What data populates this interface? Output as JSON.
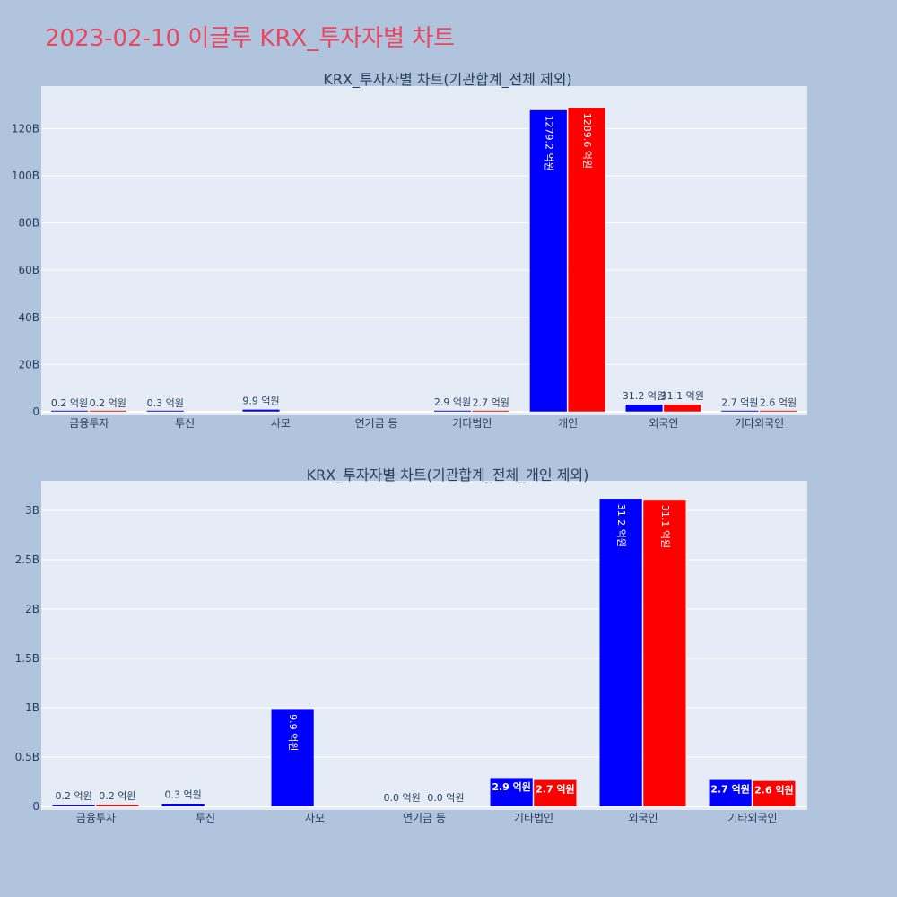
{
  "title": "2023-02-10 이글루 KRX_투자자별 차트",
  "colors": {
    "background": "#b0c4de",
    "plot_bg": "#e5ecf6",
    "title": "#e8475f",
    "buy": "#0000ff",
    "sell": "#ff0000"
  },
  "chart_data": [
    {
      "type": "bar",
      "title": "KRX_투자자별 차트(기관합계_전체 제외)",
      "categories": [
        "금융투자",
        "투신",
        "사모",
        "연기금 등",
        "기타법인",
        "개인",
        "외국인",
        "기타외국인"
      ],
      "ylim": [
        0,
        138000000000
      ],
      "yticks": [
        0,
        20000000000,
        40000000000,
        60000000000,
        80000000000,
        100000000000,
        120000000000
      ],
      "ytick_labels": [
        "0",
        "20B",
        "40B",
        "60B",
        "80B",
        "100B",
        "120B"
      ],
      "grid": true,
      "series": [
        {
          "color": "#0000ff",
          "values": [
            20000000,
            30000000,
            990000000,
            0,
            290000000,
            127920000000,
            3120000000,
            270000000
          ],
          "labels": [
            "0.2 억원",
            "0.3 억원",
            "9.9 억원",
            "",
            "2.9 억원",
            "1279.2 억원",
            "31.2 억원",
            "2.7 억원"
          ]
        },
        {
          "color": "#ff0000",
          "values": [
            20000000,
            0,
            0,
            0,
            270000000,
            128960000000,
            3110000000,
            260000000
          ],
          "labels": [
            "0.2 억원",
            "",
            "",
            "",
            "2.7 억원",
            "1289.6 억원",
            "31.1 억원",
            "2.6 억원"
          ]
        }
      ]
    },
    {
      "type": "bar",
      "title": "KRX_투자자별 차트(기관합계_전체_개인 제외)",
      "categories": [
        "금융투자",
        "투신",
        "사모",
        "연기금 등",
        "기타법인",
        "외국인",
        "기타외국인"
      ],
      "ylim": [
        0,
        3300000000
      ],
      "yticks": [
        0,
        500000000,
        1000000000,
        1500000000,
        2000000000,
        2500000000,
        3000000000
      ],
      "ytick_labels": [
        "0",
        "0.5B",
        "1B",
        "1.5B",
        "2B",
        "2.5B",
        "3B"
      ],
      "grid": true,
      "series": [
        {
          "color": "#0000ff",
          "values": [
            20000000,
            30000000,
            990000000,
            0,
            290000000,
            3120000000,
            270000000
          ],
          "labels": [
            "0.2 억원",
            "0.3 억원",
            "9.9 억원",
            "0.0 억원",
            "2.9 억원",
            "31.2 억원",
            "2.7 억원"
          ]
        },
        {
          "color": "#ff0000",
          "values": [
            20000000,
            0,
            0,
            0,
            270000000,
            3110000000,
            260000000
          ],
          "labels": [
            "0.2 억원",
            "",
            "",
            "0.0 억원",
            "2.7 억원",
            "31.1 억원",
            "2.6 억원"
          ]
        }
      ]
    }
  ]
}
